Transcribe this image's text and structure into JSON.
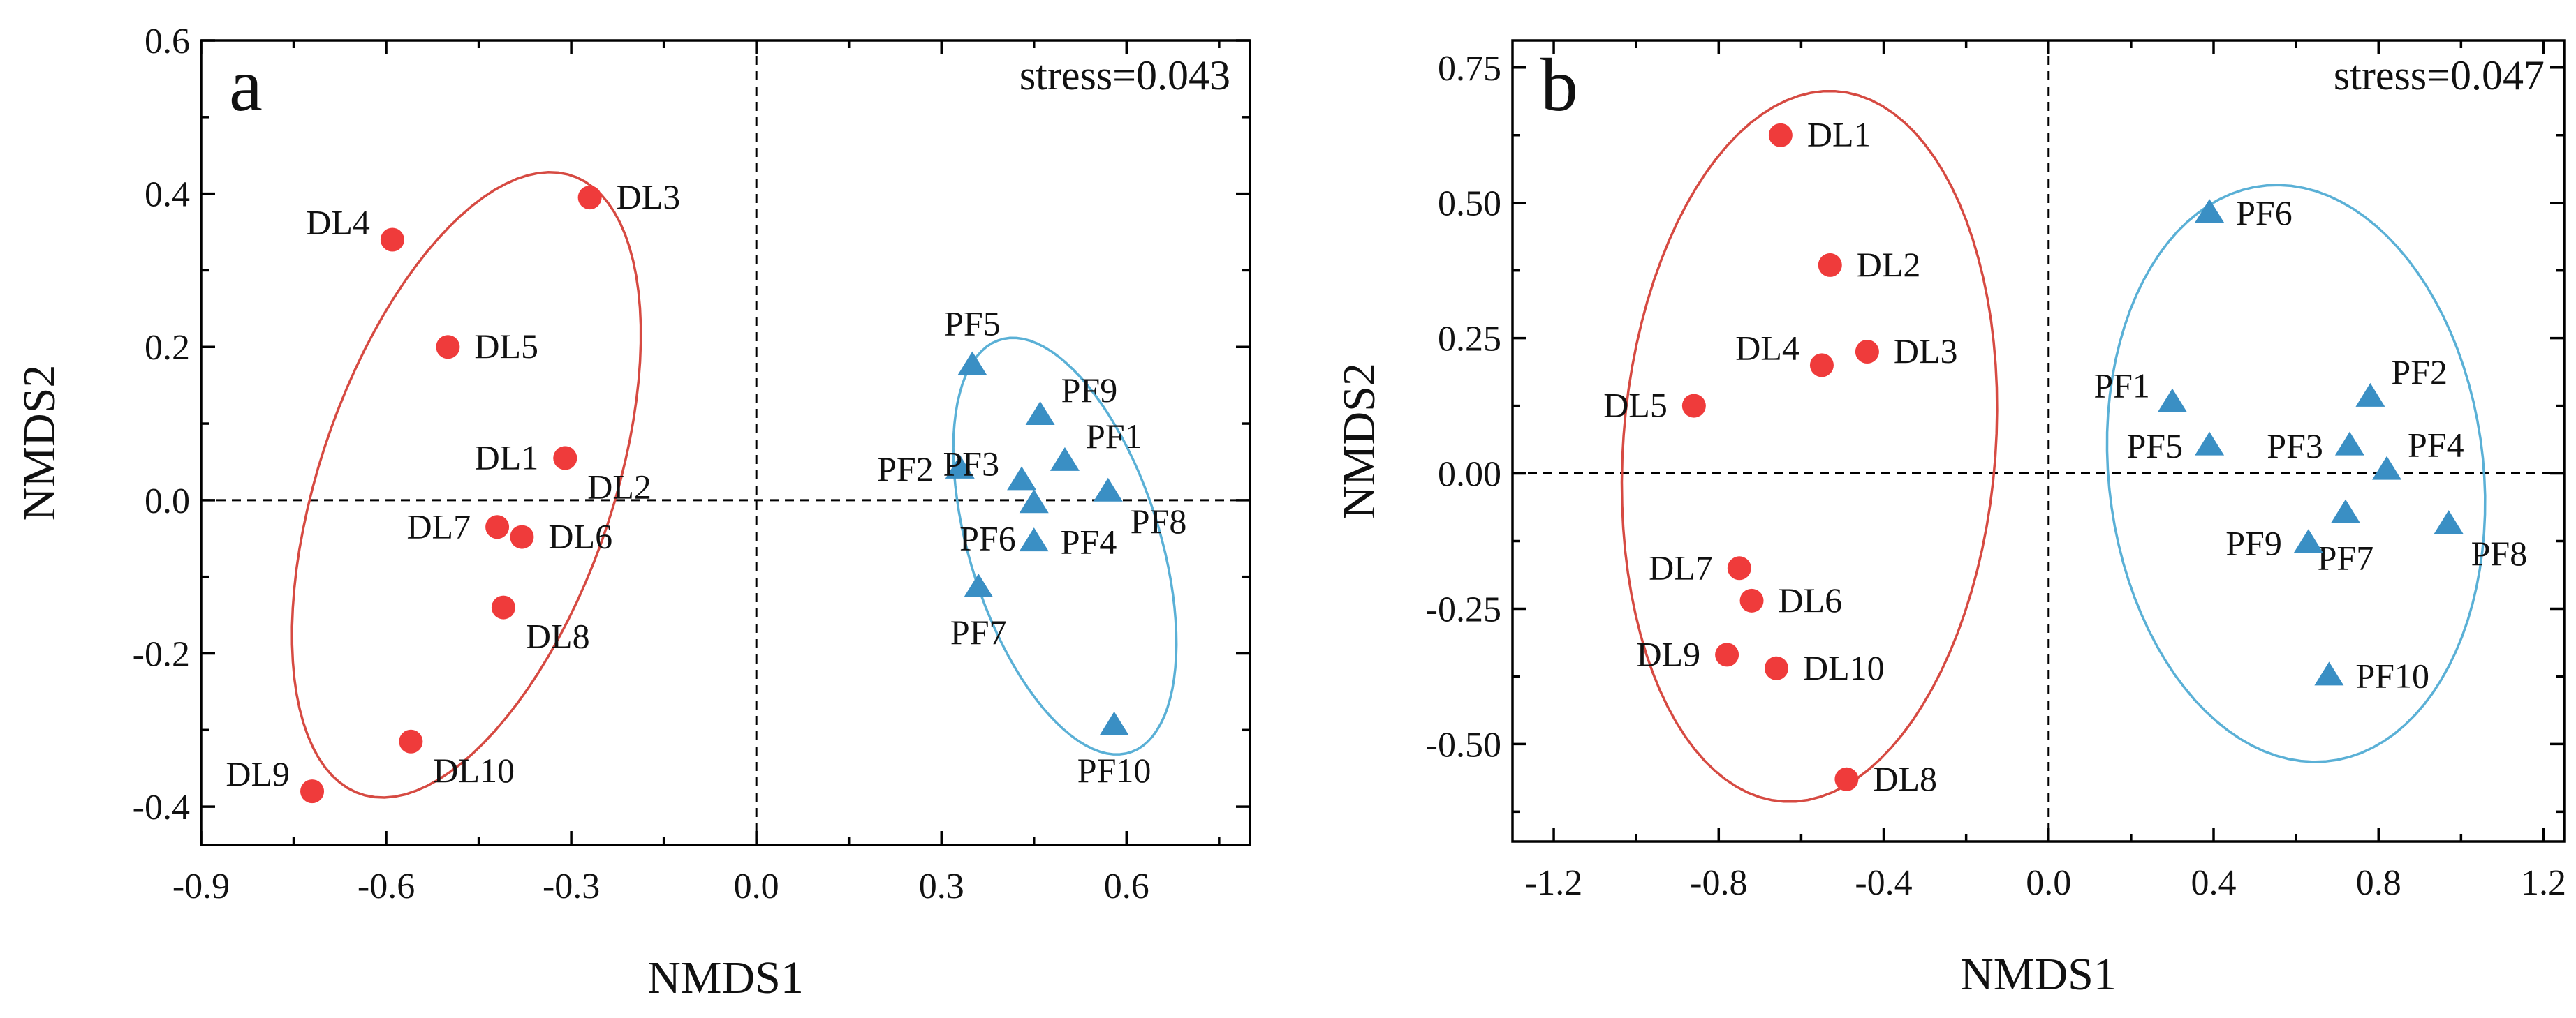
{
  "chart_data": [
    {
      "type": "scatter",
      "panel_label": "a",
      "annotation": "stress=0.043",
      "xlabel": "NMDS1",
      "ylabel": "NMDS2",
      "xlim": [
        -0.9,
        0.8
      ],
      "ylim": [
        -0.45,
        0.6
      ],
      "xticks": [
        -0.9,
        -0.6,
        -0.3,
        0.0,
        0.3,
        0.6
      ],
      "xtick_labels": [
        "-0.9",
        "-0.6",
        "-0.3",
        "0.0",
        "0.3",
        "0.6"
      ],
      "yticks": [
        -0.4,
        -0.2,
        0.0,
        0.2,
        0.4,
        0.6
      ],
      "ytick_labels": [
        "-0.4",
        "-0.2",
        "0.0",
        "0.2",
        "0.4",
        "0.6"
      ],
      "reference_lines": {
        "x": 0,
        "y": 0
      },
      "series": [
        {
          "name": "DL",
          "marker": "circle",
          "color": "#ef3b3b",
          "ellipse": {
            "cx": -0.47,
            "cy": 0.02,
            "rx": 0.44,
            "ry": 0.23,
            "angle_deg": 64,
            "color": "#d64a42"
          },
          "points": [
            {
              "label": "DL1",
              "x": -0.31,
              "y": 0.055,
              "label_pos": "left"
            },
            {
              "label": "DL2",
              "x": -0.31,
              "y": 0.055,
              "label_pos": "below-right"
            },
            {
              "label": "DL3",
              "x": -0.27,
              "y": 0.395,
              "label_pos": "right"
            },
            {
              "label": "DL4",
              "x": -0.59,
              "y": 0.34,
              "label_pos": "upper-left"
            },
            {
              "label": "DL5",
              "x": -0.5,
              "y": 0.2,
              "label_pos": "right"
            },
            {
              "label": "DL6",
              "x": -0.38,
              "y": -0.048,
              "label_pos": "right"
            },
            {
              "label": "DL7",
              "x": -0.42,
              "y": -0.035,
              "label_pos": "left"
            },
            {
              "label": "DL8",
              "x": -0.41,
              "y": -0.14,
              "label_pos": "below-right"
            },
            {
              "label": "DL9",
              "x": -0.72,
              "y": -0.38,
              "label_pos": "upper-left"
            },
            {
              "label": "DL10",
              "x": -0.56,
              "y": -0.315,
              "label_pos": "below-right"
            }
          ]
        },
        {
          "name": "PF",
          "marker": "triangle",
          "color": "#3a8fc4",
          "ellipse": {
            "cx": 0.5,
            "cy": -0.06,
            "rx": 0.29,
            "ry": 0.15,
            "angle_deg": -66,
            "color": "#5ab0d6"
          },
          "points": [
            {
              "label": "PF1",
              "x": 0.5,
              "y": 0.05,
              "label_pos": "upper-right"
            },
            {
              "label": "PF2",
              "x": 0.33,
              "y": 0.04,
              "label_pos": "left"
            },
            {
              "label": "PF3",
              "x": 0.43,
              "y": 0.025,
              "label_pos": "upper-left"
            },
            {
              "label": "PF4",
              "x": 0.45,
              "y": -0.055,
              "label_pos": "right"
            },
            {
              "label": "PF5",
              "x": 0.35,
              "y": 0.175,
              "label_pos": "above"
            },
            {
              "label": "PF6",
              "x": 0.45,
              "y": -0.005,
              "label_pos": "below-left"
            },
            {
              "label": "PF7",
              "x": 0.36,
              "y": -0.115,
              "label_pos": "below"
            },
            {
              "label": "PF8",
              "x": 0.57,
              "y": 0.01,
              "label_pos": "below-right"
            },
            {
              "label": "PF9",
              "x": 0.46,
              "y": 0.11,
              "label_pos": "upper-right"
            },
            {
              "label": "PF10",
              "x": 0.58,
              "y": -0.295,
              "label_pos": "below"
            }
          ]
        }
      ]
    },
    {
      "type": "scatter",
      "panel_label": "b",
      "annotation": "stress=0.047",
      "xlabel": "NMDS1",
      "ylabel": "NMDS2",
      "xlim": [
        -1.3,
        1.25
      ],
      "ylim": [
        -0.68,
        0.8
      ],
      "xticks": [
        -1.2,
        -0.8,
        -0.4,
        0.0,
        0.4,
        0.8,
        1.2
      ],
      "xtick_labels": [
        "-1.2",
        "-0.8",
        "-0.4",
        "0.0",
        "0.4",
        "0.8",
        "1.2"
      ],
      "yticks": [
        -0.5,
        -0.25,
        0.0,
        0.25,
        0.5,
        0.75
      ],
      "ytick_labels": [
        "-0.50",
        "-0.25",
        "0.00",
        "0.25",
        "0.50",
        "0.75"
      ],
      "reference_lines": {
        "x": 0,
        "y": 0
      },
      "series": [
        {
          "name": "DL",
          "marker": "circle",
          "color": "#ef3b3b",
          "ellipse": {
            "cx": -0.58,
            "cy": 0.05,
            "rx": 0.66,
            "ry": 0.45,
            "angle_deg": 82,
            "color": "#d64a42"
          },
          "points": [
            {
              "label": "DL1",
              "x": -0.65,
              "y": 0.625,
              "label_pos": "right"
            },
            {
              "label": "DL2",
              "x": -0.53,
              "y": 0.385,
              "label_pos": "right"
            },
            {
              "label": "DL3",
              "x": -0.44,
              "y": 0.225,
              "label_pos": "right"
            },
            {
              "label": "DL4",
              "x": -0.55,
              "y": 0.2,
              "label_pos": "upper-left"
            },
            {
              "label": "DL5",
              "x": -0.86,
              "y": 0.125,
              "label_pos": "left"
            },
            {
              "label": "DL6",
              "x": -0.72,
              "y": -0.235,
              "label_pos": "right"
            },
            {
              "label": "DL7",
              "x": -0.75,
              "y": -0.175,
              "label_pos": "left"
            },
            {
              "label": "DL8",
              "x": -0.49,
              "y": -0.565,
              "label_pos": "right"
            },
            {
              "label": "DL9",
              "x": -0.78,
              "y": -0.335,
              "label_pos": "left"
            },
            {
              "label": "DL10",
              "x": -0.66,
              "y": -0.36,
              "label_pos": "right"
            }
          ]
        },
        {
          "name": "PF",
          "marker": "triangle",
          "color": "#3a8fc4",
          "ellipse": {
            "cx": 0.6,
            "cy": 0.0,
            "rx": 0.54,
            "ry": 0.45,
            "angle_deg": -73,
            "color": "#5ab0d6"
          },
          "points": [
            {
              "label": "PF1",
              "x": 0.3,
              "y": 0.13,
              "label_pos": "upper-left"
            },
            {
              "label": "PF2",
              "x": 0.78,
              "y": 0.14,
              "label_pos": "upper-right"
            },
            {
              "label": "PF3",
              "x": 0.73,
              "y": 0.05,
              "label_pos": "left"
            },
            {
              "label": "PF4",
              "x": 0.82,
              "y": 0.005,
              "label_pos": "upper-right"
            },
            {
              "label": "PF5",
              "x": 0.39,
              "y": 0.05,
              "label_pos": "left"
            },
            {
              "label": "PF6",
              "x": 0.39,
              "y": 0.48,
              "label_pos": "right"
            },
            {
              "label": "PF7",
              "x": 0.72,
              "y": -0.075,
              "label_pos": "below"
            },
            {
              "label": "PF8",
              "x": 0.97,
              "y": -0.095,
              "label_pos": "below-right"
            },
            {
              "label": "PF9",
              "x": 0.63,
              "y": -0.13,
              "label_pos": "left"
            },
            {
              "label": "PF10",
              "x": 0.68,
              "y": -0.375,
              "label_pos": "right"
            }
          ]
        }
      ]
    }
  ]
}
